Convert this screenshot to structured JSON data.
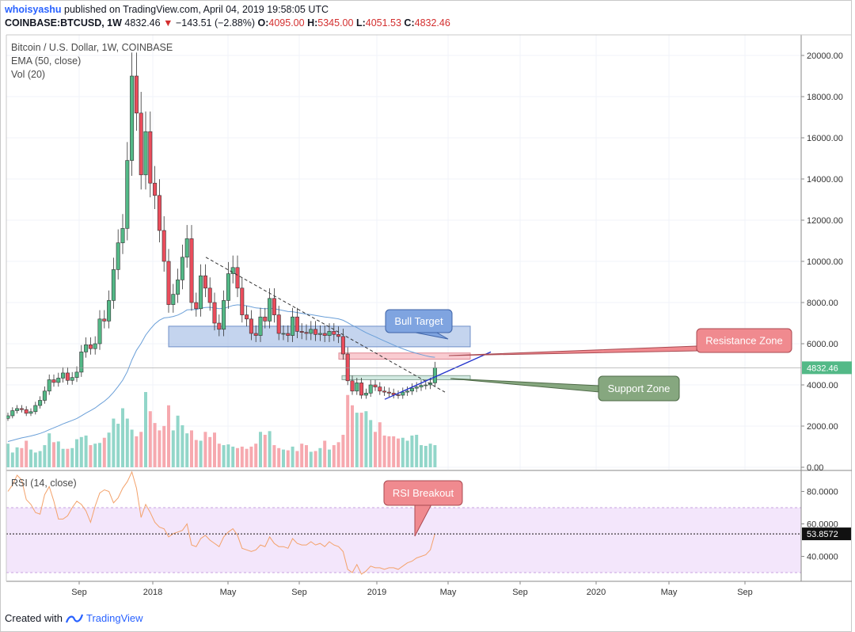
{
  "header": {
    "user": "whoisyashu",
    "published": "published on TradingView.com, April 04, 2019 19:58:05 UTC",
    "symbol": "COINBASE:BTCUSD, 1W",
    "last": "4832.46",
    "change": "−143.51 (−2.88%)",
    "o_label": "O:",
    "o_value": "4095.00",
    "h_label": "H:",
    "h_value": "5345.00",
    "l_label": "L:",
    "l_value": "4051.53",
    "c_label": "C:",
    "c_value": "4832.46"
  },
  "legend": {
    "title": "Bitcoin / U.S. Dollar, 1W, COINBASE",
    "ema": "EMA (50, close)",
    "vol": "Vol (20)",
    "rsi": "RSI (14, close)"
  },
  "footer": {
    "created_with": "Created with",
    "brand": "TradingView"
  },
  "colors": {
    "up": "#53b987",
    "down": "#eb4d5c",
    "ema": "#6a9fd8",
    "rsi": "#f3a26b",
    "bull_box": "#9db7e3",
    "res_box": "#f7b6be",
    "sup_box": "#bfe0d4"
  },
  "chart_data": [
    {
      "type": "candlestick",
      "title": "Bitcoin / U.S. Dollar, 1W, COINBASE",
      "current_price": 4832.46,
      "current_price_label": "4832.46",
      "y_ticks": [
        "20000.00",
        "18000.00",
        "16000.00",
        "14000.00",
        "12000.00",
        "10000.00",
        "8000.00",
        "6000.00",
        "4000.00",
        "2000.00",
        "0.00"
      ],
      "y_tick_values": [
        20000,
        18000,
        16000,
        14000,
        12000,
        10000,
        8000,
        6000,
        4000,
        2000,
        0
      ],
      "x_ticks": [
        "Sep",
        "2018",
        "May",
        "Sep",
        "2019",
        "May",
        "Sep",
        "2020",
        "May",
        "Sep"
      ],
      "ylim": [
        0,
        20600
      ],
      "closes": [
        2500,
        2750,
        2850,
        2800,
        2620,
        2700,
        3000,
        3250,
        3700,
        4250,
        4120,
        4330,
        4580,
        4220,
        4360,
        4620,
        5600,
        5950,
        5760,
        6000,
        7200,
        7100,
        8100,
        9600,
        10900,
        11600,
        14900,
        19000,
        17200,
        14200,
        16300,
        13800,
        13200,
        11500,
        10000,
        7900,
        8400,
        9100,
        10200,
        11100,
        8000,
        7700,
        9300,
        8700,
        8000,
        7000,
        6700,
        8100,
        9400,
        9700,
        8700,
        7400,
        7200,
        6500,
        6400,
        7300,
        7100,
        8200,
        7400,
        6500,
        6500,
        6400,
        7300,
        6600,
        6550,
        6500,
        6700,
        6450,
        6500,
        6400,
        6600,
        6450,
        6350,
        5500,
        4200,
        3700,
        4100,
        3500,
        3600,
        4000,
        3900,
        3700,
        3650,
        3600,
        3520,
        3500,
        3650,
        3700,
        3840,
        3900,
        3980,
        4000,
        4100,
        4832
      ],
      "volumes": [
        1600,
        1000,
        1350,
        1300,
        1800,
        1200,
        1000,
        1100,
        1500,
        2300,
        1700,
        1750,
        1250,
        1250,
        1300,
        1900,
        2050,
        2150,
        1500,
        1600,
        1650,
        2000,
        2350,
        3300,
        2950,
        4000,
        3300,
        2550,
        2100,
        2400,
        5100,
        3800,
        3000,
        2500,
        2800,
        4200,
        2500,
        3500,
        2850,
        2300,
        2500,
        1850,
        1800,
        2400,
        2050,
        2350,
        1600,
        1500,
        1550,
        1400,
        1300,
        1400,
        1250,
        1400,
        1600,
        2400,
        2200,
        2450,
        1500,
        1300,
        1200,
        1150,
        1400,
        1100,
        1600,
        1500,
        1050,
        1100,
        1300,
        1800,
        1200,
        1500,
        1700,
        2200,
        4900,
        4200,
        3700,
        3700,
        3800,
        3200,
        2400,
        3050,
        2150,
        2100,
        2100,
        1950,
        2000,
        1800,
        2150,
        2200,
        1500,
        1450,
        1600,
        1500
      ]
    },
    {
      "type": "line",
      "title": "RSI (14, close)",
      "current_value": 53.8572,
      "current_value_label": "53.8572",
      "y_ticks": [
        "80.0000",
        "60.0000",
        "40.0000"
      ],
      "y_tick_values": [
        80,
        60,
        40
      ],
      "band": [
        30,
        70
      ],
      "ylim": [
        28,
        95
      ],
      "values": [
        80,
        84,
        90,
        87,
        75,
        72,
        67,
        66,
        78,
        83,
        74,
        63,
        63,
        65,
        70,
        74,
        72,
        68,
        61,
        71,
        79,
        81,
        80,
        73,
        76,
        82,
        86,
        92,
        82,
        64,
        72,
        67,
        61,
        58,
        57,
        52,
        54,
        55,
        56,
        60,
        47,
        46,
        51,
        53,
        50,
        48,
        46,
        52,
        55,
        57,
        53,
        45,
        44,
        43,
        44,
        47,
        46,
        52,
        48,
        46,
        46,
        45,
        51,
        48,
        47,
        47,
        49,
        47,
        48,
        46,
        49,
        47,
        46,
        43,
        32,
        30,
        35,
        29,
        31,
        34,
        33,
        33,
        32,
        33,
        33,
        32,
        34,
        36,
        37,
        39,
        40,
        41,
        44,
        54
      ]
    }
  ],
  "annotations": {
    "bull_target": "Bull Target",
    "resistance_zone": "Resistance Zone",
    "support_zone": "Support Zone",
    "rsi_breakout": "RSI Breakout"
  }
}
